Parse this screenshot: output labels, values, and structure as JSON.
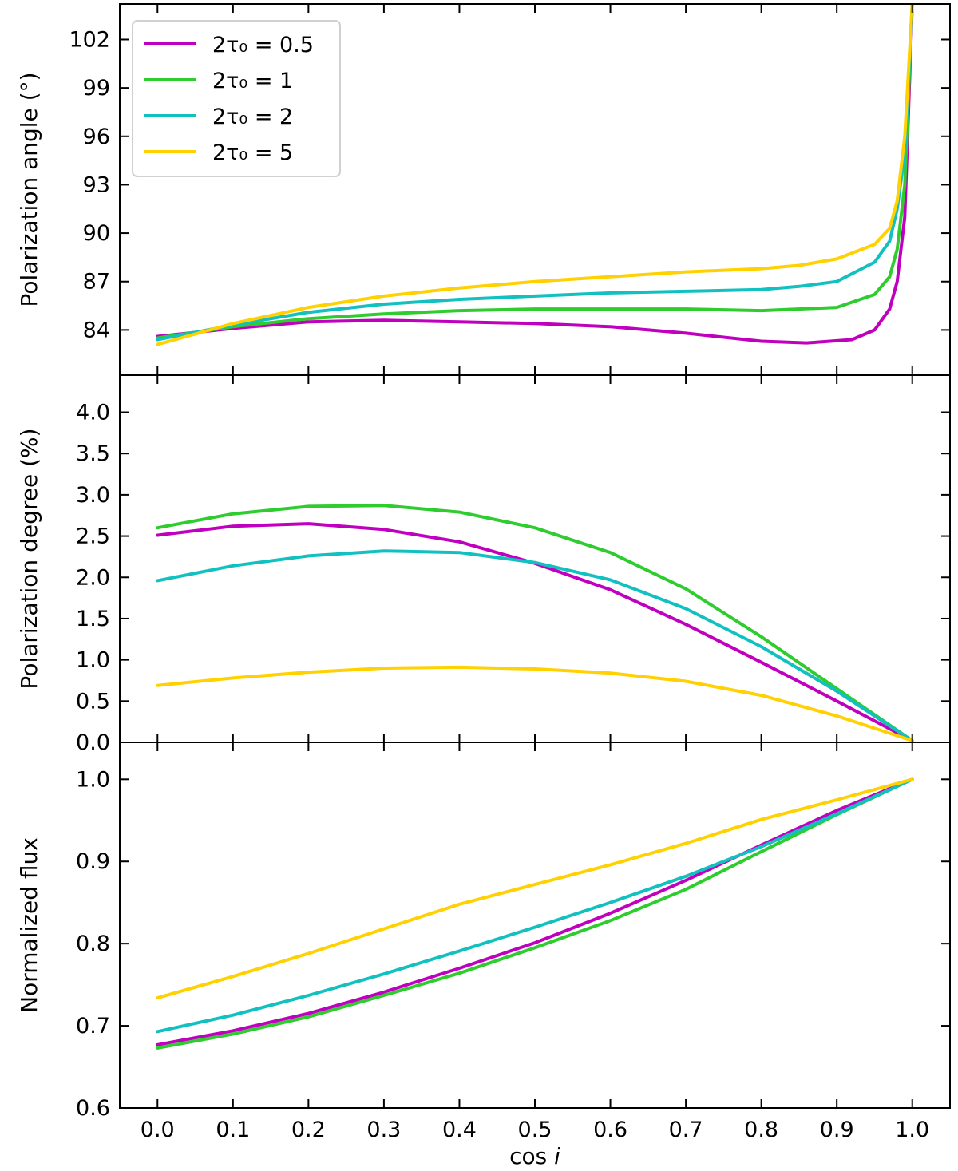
{
  "chart_data": {
    "type": "line",
    "xlabel": "cos ",
    "xlabel_italic": "i",
    "xlim": [
      -0.05,
      1.05
    ],
    "xticks": [
      "0.0",
      "0.1",
      "0.2",
      "0.3",
      "0.4",
      "0.5",
      "0.6",
      "0.7",
      "0.8",
      "0.9",
      "1.0"
    ],
    "legend": {
      "placement": "top-left",
      "entries": [
        {
          "label": "2τ₀ = 0.5",
          "color": "#bf00bf"
        },
        {
          "label": "2τ₀ = 1",
          "color": "#2ecc2e"
        },
        {
          "label": "2τ₀ = 2",
          "color": "#12c0c0"
        },
        {
          "label": "2τ₀ = 5",
          "color": "#ffd100"
        }
      ]
    },
    "panels": [
      {
        "ylabel": "Polarization angle (°)",
        "ylim": [
          81.2,
          104.2
        ],
        "yticks": [
          "84",
          "87",
          "90",
          "93",
          "96",
          "99",
          "102"
        ],
        "series": [
          {
            "name": "2τ₀ = 0.5",
            "color": "#bf00bf",
            "x": [
              0,
              0.1,
              0.2,
              0.3,
              0.4,
              0.5,
              0.6,
              0.7,
              0.8,
              0.86,
              0.92,
              0.95,
              0.97,
              0.98,
              0.99,
              1.0
            ],
            "y": [
              83.6,
              84.1,
              84.5,
              84.6,
              84.5,
              84.4,
              84.2,
              83.8,
              83.3,
              83.2,
              83.4,
              84.0,
              85.3,
              87.0,
              91.0,
              104.2
            ]
          },
          {
            "name": "2τ₀ = 1",
            "color": "#2ecc2e",
            "x": [
              0,
              0.1,
              0.2,
              0.3,
              0.4,
              0.5,
              0.6,
              0.7,
              0.8,
              0.9,
              0.95,
              0.97,
              0.98,
              0.99,
              1.0
            ],
            "y": [
              83.5,
              84.2,
              84.7,
              85.0,
              85.2,
              85.3,
              85.3,
              85.3,
              85.2,
              85.4,
              86.2,
              87.3,
              89.0,
              93.0,
              104.2
            ]
          },
          {
            "name": "2τ₀ = 2",
            "color": "#12c0c0",
            "x": [
              0,
              0.1,
              0.2,
              0.3,
              0.4,
              0.5,
              0.6,
              0.7,
              0.8,
              0.85,
              0.9,
              0.95,
              0.97,
              0.98,
              0.99,
              1.0
            ],
            "y": [
              83.4,
              84.3,
              85.1,
              85.6,
              85.9,
              86.1,
              86.3,
              86.4,
              86.5,
              86.7,
              87.0,
              88.2,
              89.5,
              91.5,
              95.0,
              104.2
            ]
          },
          {
            "name": "2τ₀ = 5",
            "color": "#ffd100",
            "x": [
              0,
              0.1,
              0.2,
              0.3,
              0.4,
              0.5,
              0.6,
              0.7,
              0.8,
              0.85,
              0.9,
              0.95,
              0.97,
              0.98,
              0.99,
              1.0
            ],
            "y": [
              83.1,
              84.4,
              85.4,
              86.1,
              86.6,
              87.0,
              87.3,
              87.6,
              87.8,
              88.0,
              88.4,
              89.3,
              90.3,
              92.0,
              96.0,
              104.2
            ]
          }
        ]
      },
      {
        "ylabel": "Polarization degree (%)",
        "ylim": [
          0,
          4.45
        ],
        "yticks": [
          "0.0",
          "0.5",
          "1.0",
          "1.5",
          "2.0",
          "2.5",
          "3.0",
          "3.5",
          "4.0"
        ],
        "series": [
          {
            "name": "2τ₀ = 0.5",
            "color": "#bf00bf",
            "x": [
              0,
              0.1,
              0.2,
              0.3,
              0.4,
              0.5,
              0.6,
              0.7,
              0.8,
              0.9,
              1.0
            ],
            "y": [
              2.51,
              2.62,
              2.65,
              2.58,
              2.43,
              2.17,
              1.85,
              1.43,
              0.97,
              0.5,
              0.02
            ]
          },
          {
            "name": "2τ₀ = 1",
            "color": "#2ecc2e",
            "x": [
              0,
              0.1,
              0.2,
              0.3,
              0.4,
              0.5,
              0.6,
              0.7,
              0.8,
              0.9,
              1.0
            ],
            "y": [
              2.6,
              2.77,
              2.86,
              2.87,
              2.79,
              2.6,
              2.3,
              1.86,
              1.28,
              0.65,
              0.02
            ]
          },
          {
            "name": "2τ₀ = 2",
            "color": "#12c0c0",
            "x": [
              0,
              0.1,
              0.2,
              0.3,
              0.4,
              0.5,
              0.6,
              0.7,
              0.8,
              0.9,
              1.0
            ],
            "y": [
              1.96,
              2.14,
              2.26,
              2.32,
              2.3,
              2.18,
              1.97,
              1.62,
              1.16,
              0.62,
              0.02
            ]
          },
          {
            "name": "2τ₀ = 5",
            "color": "#ffd100",
            "x": [
              0,
              0.1,
              0.2,
              0.3,
              0.4,
              0.5,
              0.6,
              0.7,
              0.8,
              0.9,
              1.0
            ],
            "y": [
              0.69,
              0.78,
              0.85,
              0.9,
              0.91,
              0.89,
              0.84,
              0.74,
              0.57,
              0.32,
              0.02
            ]
          }
        ]
      },
      {
        "ylabel": "Normalized flux",
        "ylim": [
          0.6,
          1.045
        ],
        "yticks": [
          "0.6",
          "0.7",
          "0.8",
          "0.9",
          "1.0"
        ],
        "series": [
          {
            "name": "2τ₀ = 0.5",
            "color": "#bf00bf",
            "x": [
              0,
              0.1,
              0.2,
              0.3,
              0.4,
              0.5,
              0.6,
              0.7,
              0.8,
              0.9,
              1.0
            ],
            "y": [
              0.677,
              0.694,
              0.715,
              0.741,
              0.77,
              0.801,
              0.837,
              0.877,
              0.92,
              0.962,
              1.0
            ]
          },
          {
            "name": "2τ₀ = 1",
            "color": "#2ecc2e",
            "x": [
              0,
              0.1,
              0.2,
              0.3,
              0.4,
              0.5,
              0.6,
              0.7,
              0.8,
              0.9,
              1.0
            ],
            "y": [
              0.673,
              0.69,
              0.711,
              0.737,
              0.764,
              0.795,
              0.828,
              0.866,
              0.912,
              0.957,
              1.0
            ]
          },
          {
            "name": "2τ₀ = 2",
            "color": "#12c0c0",
            "x": [
              0,
              0.1,
              0.2,
              0.3,
              0.4,
              0.5,
              0.6,
              0.7,
              0.8,
              0.9,
              1.0
            ],
            "y": [
              0.693,
              0.713,
              0.737,
              0.763,
              0.791,
              0.82,
              0.85,
              0.882,
              0.918,
              0.958,
              1.0
            ]
          },
          {
            "name": "2τ₀ = 5",
            "color": "#ffd100",
            "x": [
              0,
              0.1,
              0.2,
              0.3,
              0.4,
              0.5,
              0.6,
              0.7,
              0.8,
              0.9,
              1.0
            ],
            "y": [
              0.734,
              0.76,
              0.788,
              0.818,
              0.848,
              0.872,
              0.896,
              0.922,
              0.951,
              0.975,
              1.0
            ]
          }
        ]
      }
    ]
  }
}
